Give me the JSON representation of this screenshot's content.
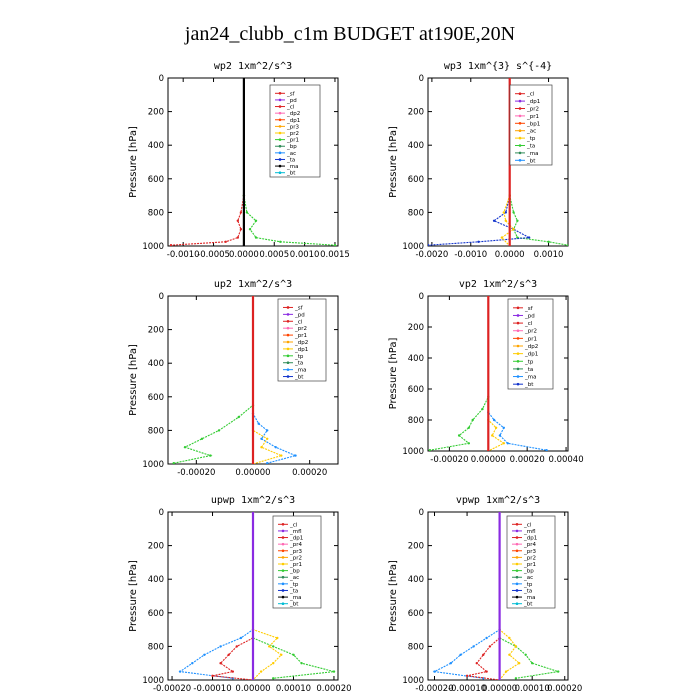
{
  "figure": {
    "title": "jan24_clubb_c1m  BUDGET at190E,20N"
  },
  "chart_data": [
    {
      "type": "line",
      "title": "wp2   1xm^2/s^3",
      "ylabel": "Pressure [hPa]",
      "xlim": [
        -0.00125,
        0.00155
      ],
      "ylim": [
        1000,
        0
      ],
      "xticks": [
        -0.001,
        -0.0005,
        0.0,
        0.0005,
        0.001,
        0.0015
      ],
      "xtick_labels": [
        "-0.0010",
        "-0.0005",
        "0.0000",
        "0.0005",
        "0.0010",
        "0.0015"
      ],
      "yticks": [
        0,
        200,
        400,
        600,
        800,
        1000
      ],
      "legend": [
        "_sf",
        "_pd",
        "_cl",
        "_dp2",
        "_dp1",
        "_pr3",
        "_pr2",
        "_pr1",
        "_bp",
        "_ac",
        "_ta",
        "_ma",
        "_bt"
      ],
      "series": [
        {
          "color": "#dd2222",
          "points": [
            [
              0,
              0
            ],
            [
              0,
              700
            ],
            [
              -5e-05,
              800
            ],
            [
              -0.0001,
              850
            ],
            [
              -5e-05,
              900
            ],
            [
              -0.0001,
              950
            ],
            [
              -0.0003,
              975
            ],
            [
              -0.0012,
              995
            ]
          ]
        },
        {
          "color": "#33cc33",
          "points": [
            [
              0,
              0
            ],
            [
              0,
              700
            ],
            [
              5e-05,
              800
            ],
            [
              0.0002,
              850
            ],
            [
              0.0001,
              900
            ],
            [
              0.0002,
              950
            ],
            [
              0.0006,
              975
            ],
            [
              0.0015,
              995
            ]
          ]
        },
        {
          "color": "#8a2be2",
          "points": [
            [
              0,
              0
            ],
            [
              0,
              1000
            ]
          ]
        },
        {
          "color": "#000000",
          "points": [
            [
              0,
              0
            ],
            [
              0,
              1000
            ]
          ]
        }
      ]
    },
    {
      "type": "line",
      "title": "wp3   1xm^{3} s^{-4}",
      "ylabel": "Pressure [hPa]",
      "xlim": [
        -0.0021,
        0.0015
      ],
      "ylim": [
        1000,
        0
      ],
      "xticks": [
        -0.002,
        -0.001,
        0.0,
        0.001
      ],
      "xtick_labels": [
        "-0.0020",
        "-0.0010",
        "0.0000",
        "0.0010"
      ],
      "yticks": [
        0,
        200,
        400,
        600,
        800,
        1000
      ],
      "legend": [
        "_cl",
        "_dp1",
        "_pr2",
        "_pr1",
        "_bp1",
        "_ac",
        "_tp",
        "_ta",
        "_ma",
        "_bt"
      ],
      "series": [
        {
          "color": "#33cc33",
          "points": [
            [
              0,
              0
            ],
            [
              0,
              700
            ],
            [
              0.0001,
              800
            ],
            [
              0.0002,
              850
            ],
            [
              0.0001,
              900
            ],
            [
              0.0002,
              950
            ],
            [
              0.001,
              975
            ],
            [
              0.0015,
              995
            ]
          ]
        },
        {
          "color": "#1133cc",
          "points": [
            [
              0,
              0
            ],
            [
              0,
              700
            ],
            [
              -0.0001,
              800
            ],
            [
              -0.0004,
              850
            ],
            [
              0.0001,
              900
            ],
            [
              0.0005,
              950
            ],
            [
              -0.0008,
              975
            ],
            [
              -0.0021,
              995
            ]
          ]
        },
        {
          "color": "#ffcc00",
          "points": [
            [
              0,
              0
            ],
            [
              0,
              700
            ],
            [
              -0.00015,
              800
            ],
            [
              -0.0001,
              850
            ],
            [
              0.0001,
              900
            ],
            [
              -0.0002,
              950
            ],
            [
              0,
              1000
            ]
          ]
        },
        {
          "color": "#dd2222",
          "points": [
            [
              0,
              0
            ],
            [
              0,
              1000
            ]
          ]
        }
      ]
    },
    {
      "type": "line",
      "title": "up2   1xm^2/s^3",
      "ylabel": "Pressure [hPa]",
      "xlim": [
        -0.0003,
        0.0003
      ],
      "ylim": [
        1000,
        0
      ],
      "xticks": [
        -0.0002,
        0.0,
        0.0002
      ],
      "xtick_labels": [
        "-0.00020",
        "0.00000",
        "0.00020"
      ],
      "yticks": [
        0,
        200,
        400,
        600,
        800,
        1000
      ],
      "legend": [
        "_sf",
        "_pd",
        "_cl",
        "_pr2",
        "_pr1",
        "_dp2",
        "_dp1",
        "_tp",
        "_ta",
        "_ma",
        "_bt"
      ],
      "series": [
        {
          "color": "#33cc33",
          "points": [
            [
              0,
              0
            ],
            [
              0,
              650
            ],
            [
              -5e-05,
              720
            ],
            [
              -0.00012,
              800
            ],
            [
              -0.00018,
              850
            ],
            [
              -0.00024,
              900
            ],
            [
              -0.00015,
              950
            ],
            [
              -0.00028,
              995
            ]
          ]
        },
        {
          "color": "#1e90ff",
          "points": [
            [
              0,
              0
            ],
            [
              0,
              700
            ],
            [
              2e-05,
              760
            ],
            [
              5e-05,
              800
            ],
            [
              3e-05,
              850
            ],
            [
              8e-05,
              900
            ],
            [
              0.00015,
              950
            ],
            [
              5e-05,
              995
            ]
          ]
        },
        {
          "color": "#ffcc00",
          "points": [
            [
              0,
              0
            ],
            [
              0,
              800
            ],
            [
              5e-05,
              850
            ],
            [
              3e-05,
              900
            ],
            [
              0.0001,
              950
            ],
            [
              0,
              1000
            ]
          ]
        },
        {
          "color": "#dd2222",
          "points": [
            [
              0,
              0
            ],
            [
              0,
              1000
            ]
          ]
        }
      ]
    },
    {
      "type": "line",
      "title": "vp2   1xm^2/s^3",
      "ylabel": "Pressure [hPa]",
      "xlim": [
        -0.00031,
        0.00041
      ],
      "ylim": [
        1000,
        0
      ],
      "xticks": [
        -0.0002,
        0.0,
        0.0002,
        0.0004
      ],
      "xtick_labels": [
        "-0.00020",
        "0.00000",
        "0.00020",
        "0.00040"
      ],
      "yticks": [
        0,
        200,
        400,
        600,
        800,
        1000
      ],
      "legend": [
        "_sf",
        "_pd",
        "_cl",
        "_pr2",
        "_pr1",
        "_dp2",
        "_dp1",
        "_tp",
        "_ta",
        "_ma",
        "_bt"
      ],
      "series": [
        {
          "color": "#33cc33",
          "points": [
            [
              0,
              0
            ],
            [
              0,
              650
            ],
            [
              -3e-05,
              730
            ],
            [
              -8e-05,
              800
            ],
            [
              -0.0001,
              850
            ],
            [
              -0.00015,
              900
            ],
            [
              -0.0001,
              950
            ],
            [
              -0.0003,
              995
            ]
          ]
        },
        {
          "color": "#1e90ff",
          "points": [
            [
              0,
              0
            ],
            [
              0,
              750
            ],
            [
              3e-05,
              800
            ],
            [
              8e-05,
              850
            ],
            [
              6e-05,
              900
            ],
            [
              0.0001,
              950
            ],
            [
              0.0003,
              995
            ]
          ]
        },
        {
          "color": "#ffcc00",
          "points": [
            [
              0,
              0
            ],
            [
              0,
              800
            ],
            [
              4e-05,
              850
            ],
            [
              2e-05,
              900
            ],
            [
              8e-05,
              950
            ],
            [
              0,
              1000
            ]
          ]
        },
        {
          "color": "#dd2222",
          "points": [
            [
              0,
              0
            ],
            [
              0,
              1000
            ]
          ]
        }
      ]
    },
    {
      "type": "line",
      "title": "upwp   1xm^2/s^3",
      "ylabel": "Pressure [hPa]",
      "xlim": [
        -0.00021,
        0.00021
      ],
      "ylim": [
        1000,
        0
      ],
      "xticks": [
        -0.0002,
        -0.0001,
        0.0,
        0.0001,
        0.0002
      ],
      "xtick_labels": [
        "-0.00020",
        "-0.00010",
        "0.00000",
        "0.00010",
        "0.00020"
      ],
      "yticks": [
        0,
        200,
        400,
        600,
        800,
        1000
      ],
      "legend": [
        "_cl",
        "_mfl",
        "_dp1",
        "_pr4",
        "_pr3",
        "_pr2",
        "_pr1",
        "_bp",
        "_ac",
        "_tp",
        "_ta",
        "_ma",
        "_bt"
      ],
      "series": [
        {
          "color": "#1e90ff",
          "points": [
            [
              0,
              0
            ],
            [
              0,
              700
            ],
            [
              -3e-05,
              750
            ],
            [
              -8e-05,
              800
            ],
            [
              -0.00012,
              850
            ],
            [
              -0.00015,
              900
            ],
            [
              -0.00018,
              950
            ],
            [
              -5e-05,
              990
            ]
          ]
        },
        {
          "color": "#33cc33",
          "points": [
            [
              0,
              0
            ],
            [
              0,
              750
            ],
            [
              5e-05,
              800
            ],
            [
              0.0001,
              850
            ],
            [
              0.00012,
              900
            ],
            [
              0.0002,
              950
            ],
            [
              5e-05,
              990
            ]
          ]
        },
        {
          "color": "#ffcc00",
          "points": [
            [
              0,
              0
            ],
            [
              0,
              700
            ],
            [
              6e-05,
              750
            ],
            [
              4e-05,
              800
            ],
            [
              7e-05,
              850
            ],
            [
              5e-05,
              900
            ],
            [
              2e-05,
              950
            ],
            [
              0,
              1000
            ]
          ]
        },
        {
          "color": "#dd2222",
          "points": [
            [
              0,
              0
            ],
            [
              0,
              750
            ],
            [
              -4e-05,
              800
            ],
            [
              -6e-05,
              850
            ],
            [
              -8e-05,
              900
            ],
            [
              -5e-05,
              950
            ],
            [
              -0.0001,
              975
            ],
            [
              0,
              1000
            ]
          ]
        },
        {
          "color": "#8a2be2",
          "points": [
            [
              0,
              0
            ],
            [
              0,
              1000
            ]
          ]
        }
      ]
    },
    {
      "type": "line",
      "title": "vpwp   1xm^2/s^3",
      "ylabel": "Pressure [hPa]",
      "xlim": [
        -0.00022,
        0.00021
      ],
      "ylim": [
        1000,
        0
      ],
      "xticks": [
        -0.0002,
        -0.0001,
        0.0,
        0.0001,
        0.0002
      ],
      "xtick_labels": [
        "-0.00020",
        "-0.00010",
        "0.00000",
        "0.00010",
        "0.00020"
      ],
      "yticks": [
        0,
        200,
        400,
        600,
        800,
        1000
      ],
      "legend": [
        "_cl",
        "_mfl",
        "_dp1",
        "_pr4",
        "_pr3",
        "_pr2",
        "_pr1",
        "_bp",
        "_ac",
        "_tp",
        "_ta",
        "_ma",
        "_bt"
      ],
      "series": [
        {
          "color": "#1e90ff",
          "points": [
            [
              0,
              0
            ],
            [
              0,
              700
            ],
            [
              -4e-05,
              750
            ],
            [
              -8e-05,
              800
            ],
            [
              -0.00012,
              850
            ],
            [
              -0.00015,
              900
            ],
            [
              -0.0002,
              950
            ],
            [
              -5e-05,
              990
            ]
          ]
        },
        {
          "color": "#33cc33",
          "points": [
            [
              0,
              0
            ],
            [
              0,
              750
            ],
            [
              5e-05,
              800
            ],
            [
              8e-05,
              850
            ],
            [
              0.0001,
              900
            ],
            [
              0.00018,
              950
            ],
            [
              5e-05,
              990
            ]
          ]
        },
        {
          "color": "#ffcc00",
          "points": [
            [
              0,
              0
            ],
            [
              0,
              700
            ],
            [
              3e-05,
              750
            ],
            [
              5e-05,
              800
            ],
            [
              3e-05,
              850
            ],
            [
              6e-05,
              900
            ],
            [
              2e-05,
              950
            ],
            [
              0,
              1000
            ]
          ]
        },
        {
          "color": "#dd2222",
          "points": [
            [
              0,
              0
            ],
            [
              0,
              750
            ],
            [
              -3e-05,
              800
            ],
            [
              -5e-05,
              850
            ],
            [
              -7e-05,
              900
            ],
            [
              -4e-05,
              950
            ],
            [
              -0.0001,
              975
            ],
            [
              0,
              1000
            ]
          ]
        },
        {
          "color": "#8a2be2",
          "points": [
            [
              0,
              0
            ],
            [
              0,
              1000
            ]
          ]
        }
      ]
    }
  ]
}
